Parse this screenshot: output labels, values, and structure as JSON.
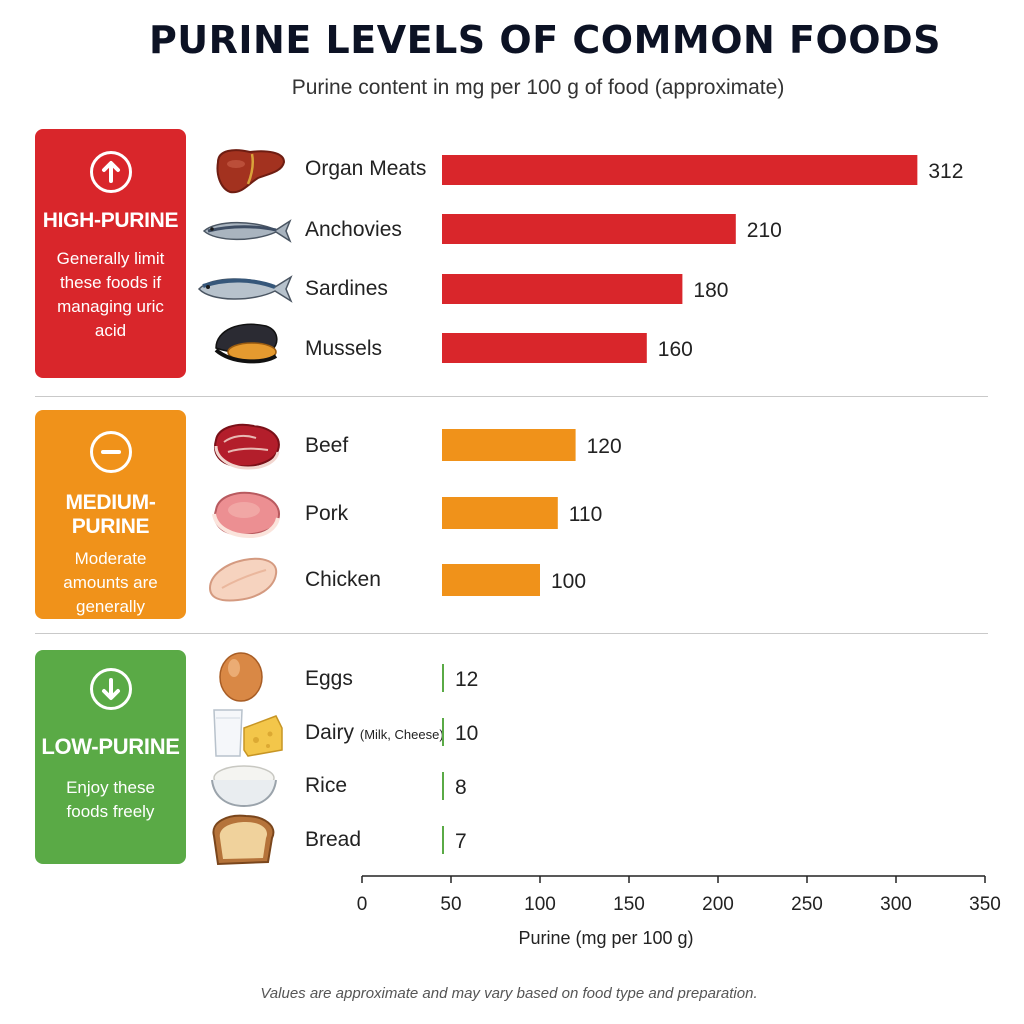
{
  "title": "PURINE LEVELS OF COMMON FOODS",
  "subtitle": "Purine content in mg per 100 g of food (approximate)",
  "categories": [
    {
      "name": "HIGH-PURINE",
      "description": "Generally limit these foods if managing uric acid",
      "color": "#d9262b",
      "icon": "arrow-up-icon"
    },
    {
      "name": "MEDIUM-PURINE",
      "description": "Moderate amounts are generally acceptable",
      "color": "#f0921a",
      "icon": "minus-icon"
    },
    {
      "name": "LOW-PURINE",
      "description": "Enjoy these foods freely",
      "color": "#5aaa46",
      "icon": "arrow-down-icon"
    }
  ],
  "foods": [
    {
      "label": "Organ Meats",
      "note": "",
      "icon": "liver-icon"
    },
    {
      "label": "Anchovies",
      "note": "",
      "icon": "anchovy-icon"
    },
    {
      "label": "Sardines",
      "note": "",
      "icon": "sardine-icon"
    },
    {
      "label": "Mussels",
      "note": "",
      "icon": "mussel-icon"
    },
    {
      "label": "Beef",
      "note": "",
      "icon": "beef-icon"
    },
    {
      "label": "Pork",
      "note": "",
      "icon": "pork-icon"
    },
    {
      "label": "Chicken",
      "note": "",
      "icon": "chicken-icon"
    },
    {
      "label": "Eggs",
      "note": "",
      "icon": "egg-icon"
    },
    {
      "label": "Dairy",
      "note": "(Milk, Cheese)",
      "icon": "milk-cheese-icon"
    },
    {
      "label": "Rice",
      "note": "",
      "icon": "rice-bowl-icon"
    },
    {
      "label": "Bread",
      "note": "",
      "icon": "bread-icon"
    }
  ],
  "chart_data": {
    "type": "bar",
    "orientation": "horizontal",
    "title": "PURINE LEVELS OF COMMON FOODS",
    "subtitle": "Purine content in mg per 100 g of food (approximate)",
    "xlabel": "Purine (mg per 100 g)",
    "ylabel": "",
    "categories": [
      "Organ Meats",
      "Anchovies",
      "Sardines",
      "Mussels",
      "Beef",
      "Pork",
      "Chicken",
      "Eggs",
      "Dairy (Milk, Cheese)",
      "Rice",
      "Bread"
    ],
    "values": [
      312,
      210,
      180,
      160,
      120,
      110,
      100,
      12,
      10,
      8,
      7
    ],
    "groups": [
      "HIGH-PURINE",
      "HIGH-PURINE",
      "HIGH-PURINE",
      "HIGH-PURINE",
      "MEDIUM-PURINE",
      "MEDIUM-PURINE",
      "MEDIUM-PURINE",
      "LOW-PURINE",
      "LOW-PURINE",
      "LOW-PURINE",
      "LOW-PURINE"
    ],
    "group_colors": {
      "HIGH-PURINE": "#d9262b",
      "MEDIUM-PURINE": "#f0921a",
      "LOW-PURINE": "#5aaa46"
    },
    "xticks": [
      0,
      50,
      100,
      150,
      200,
      250,
      300,
      350
    ],
    "xlim": [
      0,
      350
    ],
    "grid": false,
    "legend": "none"
  },
  "footnote": "Values are approximate and may vary based on food type and preparation."
}
